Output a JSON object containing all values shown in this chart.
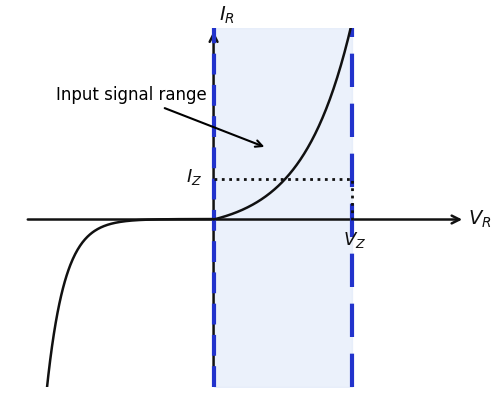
{
  "xlim": [
    -3.0,
    4.0
  ],
  "ylim": [
    -3.5,
    4.0
  ],
  "background_color": "#ffffff",
  "shading_color": "#dce6f9",
  "shading_alpha": 0.55,
  "left_line_x": 0.0,
  "right_line_x": 2.2,
  "Iz_y": 0.85,
  "Vz_x": 2.2,
  "curve_color": "#111111",
  "axis_color": "#111111",
  "blue_solid_color": "#2233cc",
  "blue_dash_color": "#2233cc",
  "dotted_color": "#111111",
  "input_signal_label": "Input signal range",
  "label_VR": "V_R",
  "label_IR": "I_R",
  "label_IZ": "I_Z",
  "label_VZ": "V_Z"
}
